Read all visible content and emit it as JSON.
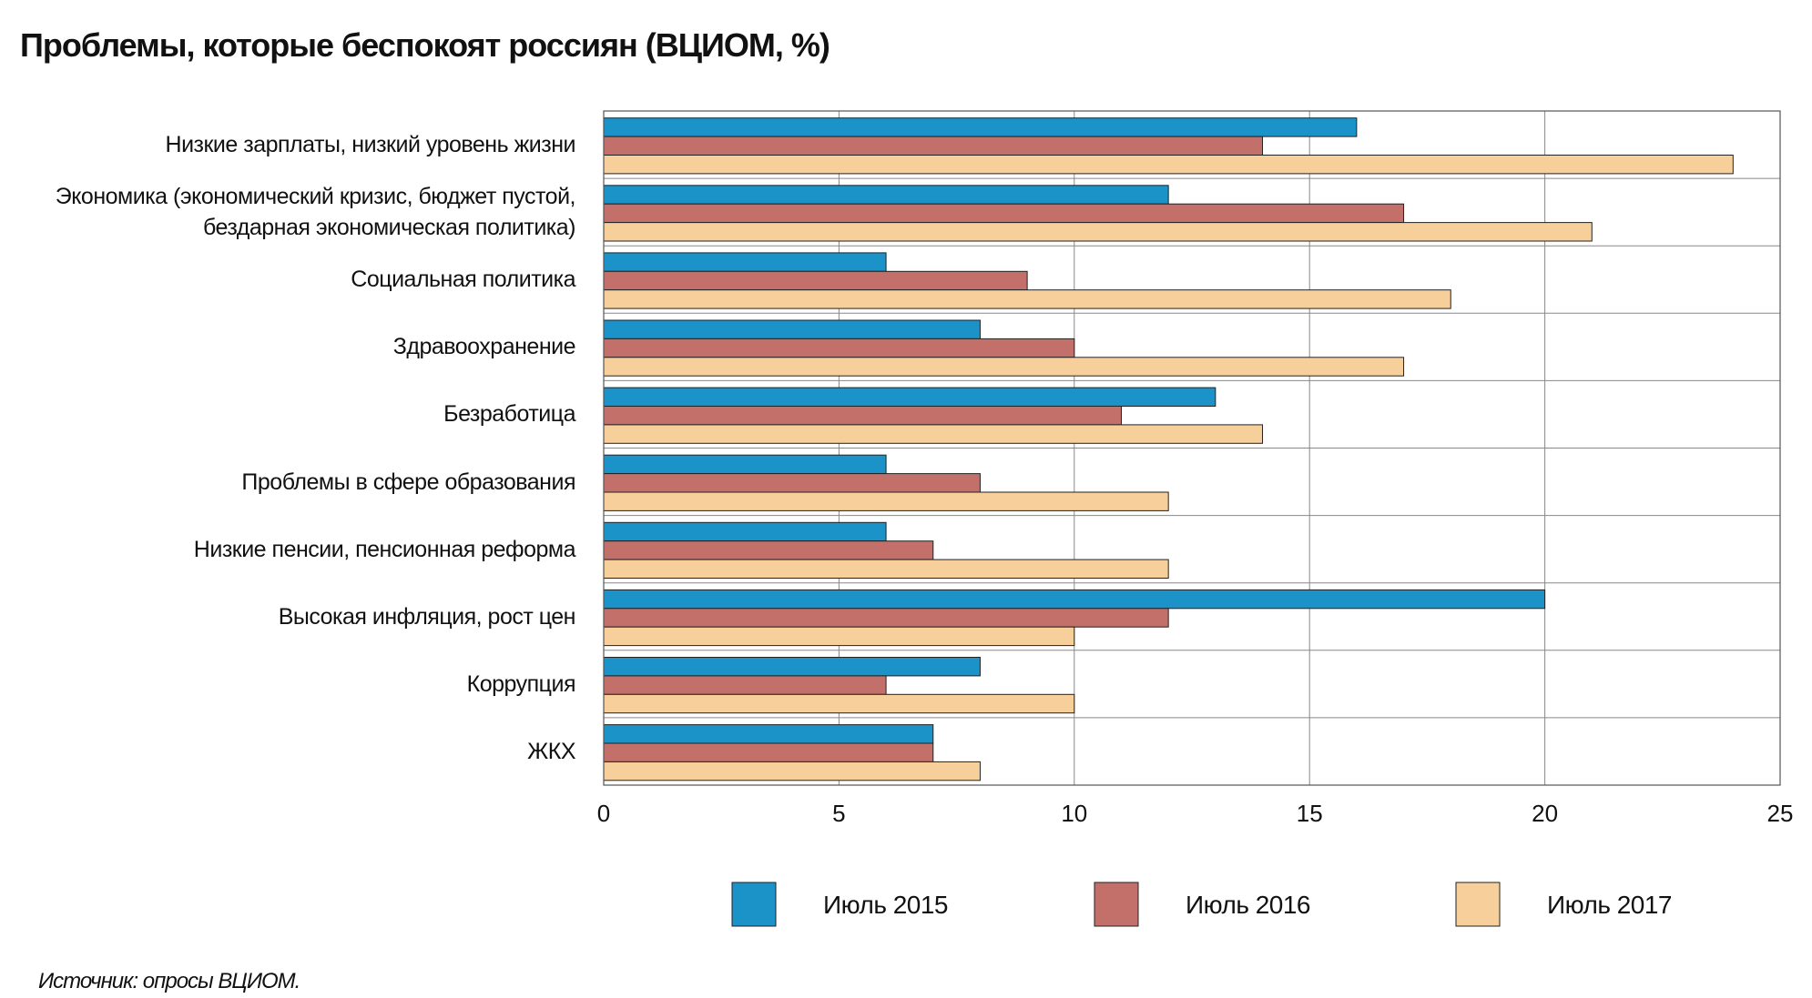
{
  "chart_data": {
    "type": "barh",
    "title": "Проблемы, которые беспокоят россиян (ВЦИОМ, %)",
    "categories": [
      "Низкие зарплаты, низкий уровень жизни",
      "Экономика (экономический кризис, бюджет пустой,\nбездарная экономическая политика)",
      "Социальная политика",
      "Здравоохранение",
      "Безработица",
      "Проблемы в сфере образования",
      "Низкие пенсии, пенсионная реформа",
      "Высокая инфляция, рост цен",
      "Коррупция",
      "ЖКХ"
    ],
    "series": [
      {
        "name": "Июль 2015",
        "color": "#1b93c9",
        "values": [
          16,
          12,
          6,
          8,
          13,
          6,
          6,
          20,
          8,
          7
        ]
      },
      {
        "name": "Июль 2016",
        "color": "#c4706a",
        "values": [
          14,
          17,
          9,
          10,
          11,
          8,
          7,
          12,
          6,
          7
        ]
      },
      {
        "name": "Июль 2017",
        "color": "#f7cf9b",
        "values": [
          24,
          21,
          18,
          17,
          14,
          12,
          12,
          10,
          10,
          8
        ]
      }
    ],
    "xlim": [
      0,
      25
    ],
    "xticks": [
      0,
      5,
      10,
      15,
      20,
      25
    ],
    "grid": true,
    "source": "Источник: опросы ВЦИОМ."
  }
}
